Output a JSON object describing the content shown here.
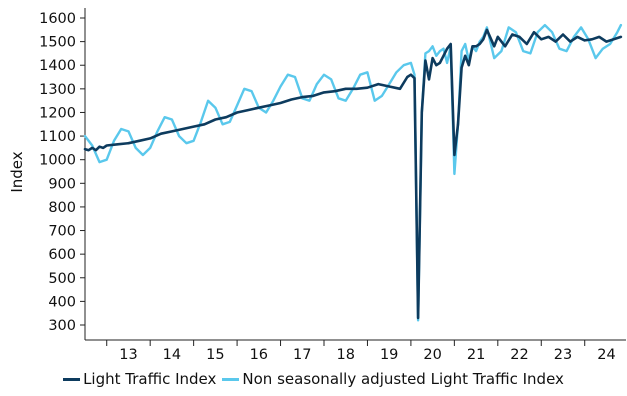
{
  "chart_data": {
    "type": "line",
    "title": "",
    "xlabel": "",
    "ylabel": "Index",
    "ylim": [
      300,
      1600
    ],
    "yticks": [
      300,
      400,
      500,
      600,
      700,
      800,
      900,
      1000,
      1100,
      1200,
      1300,
      1400,
      1500,
      1600
    ],
    "xlim": [
      2012.5,
      2024.95
    ],
    "x_tick_labels": [
      "13",
      "14",
      "15",
      "16",
      "17",
      "18",
      "19",
      "20",
      "21",
      "22",
      "23",
      "24"
    ],
    "grid": false,
    "legend_position": "bottom",
    "series": [
      {
        "name": "Light Traffic Index",
        "color": "#0d3b5e",
        "x": [
          "2012-07",
          "2012-08",
          "2012-09",
          "2012-10",
          "2012-11",
          "2012-12",
          "2013-01",
          "2013-04",
          "2013-07",
          "2013-10",
          "2014-01",
          "2014-04",
          "2014-07",
          "2014-10",
          "2015-01",
          "2015-04",
          "2015-07",
          "2015-10",
          "2016-01",
          "2016-04",
          "2016-07",
          "2016-10",
          "2017-01",
          "2017-04",
          "2017-07",
          "2017-10",
          "2018-01",
          "2018-04",
          "2018-07",
          "2018-10",
          "2019-01",
          "2019-04",
          "2019-07",
          "2019-10",
          "2019-12",
          "2020-01",
          "2020-02",
          "2020-03",
          "2020-04",
          "2020-05",
          "2020-06",
          "2020-07",
          "2020-08",
          "2020-09",
          "2020-10",
          "2020-11",
          "2020-12",
          "2021-01",
          "2021-02",
          "2021-03",
          "2021-04",
          "2021-05",
          "2021-06",
          "2021-07",
          "2021-08",
          "2021-09",
          "2021-10",
          "2021-12",
          "2022-01",
          "2022-03",
          "2022-05",
          "2022-07",
          "2022-09",
          "2022-11",
          "2023-01",
          "2023-03",
          "2023-05",
          "2023-07",
          "2023-09",
          "2023-11",
          "2024-01",
          "2024-03",
          "2024-05",
          "2024-07",
          "2024-09",
          "2024-11"
        ],
        "values": [
          1045,
          1040,
          1050,
          1040,
          1055,
          1050,
          1060,
          1065,
          1070,
          1080,
          1090,
          1110,
          1120,
          1130,
          1140,
          1150,
          1170,
          1180,
          1200,
          1210,
          1220,
          1230,
          1240,
          1255,
          1265,
          1270,
          1285,
          1290,
          1300,
          1300,
          1305,
          1320,
          1310,
          1300,
          1350,
          1360,
          1345,
          330,
          1200,
          1420,
          1340,
          1430,
          1400,
          1410,
          1440,
          1470,
          1490,
          1020,
          1150,
          1390,
          1440,
          1400,
          1480,
          1480,
          1490,
          1510,
          1550,
          1480,
          1520,
          1480,
          1530,
          1520,
          1490,
          1540,
          1510,
          1520,
          1500,
          1530,
          1500,
          1520,
          1505,
          1510,
          1520,
          1500,
          1510,
          1520
        ]
      },
      {
        "name": "Non seasonally adjusted Light Traffic Index",
        "color": "#5ac8ec",
        "x": [
          "2012-07",
          "2012-09",
          "2012-11",
          "2013-01",
          "2013-03",
          "2013-05",
          "2013-07",
          "2013-09",
          "2013-11",
          "2014-01",
          "2014-03",
          "2014-05",
          "2014-07",
          "2014-09",
          "2014-11",
          "2015-01",
          "2015-03",
          "2015-05",
          "2015-07",
          "2015-09",
          "2015-11",
          "2016-01",
          "2016-03",
          "2016-05",
          "2016-07",
          "2016-09",
          "2016-11",
          "2017-01",
          "2017-03",
          "2017-05",
          "2017-07",
          "2017-09",
          "2017-11",
          "2018-01",
          "2018-03",
          "2018-05",
          "2018-07",
          "2018-09",
          "2018-11",
          "2019-01",
          "2019-03",
          "2019-05",
          "2019-07",
          "2019-09",
          "2019-11",
          "2020-01",
          "2020-02",
          "2020-03",
          "2020-04",
          "2020-05",
          "2020-06",
          "2020-07",
          "2020-08",
          "2020-09",
          "2020-10",
          "2020-11",
          "2020-12",
          "2021-01",
          "2021-02",
          "2021-03",
          "2021-04",
          "2021-05",
          "2021-06",
          "2021-07",
          "2021-08",
          "2021-09",
          "2021-10",
          "2021-12",
          "2022-02",
          "2022-04",
          "2022-06",
          "2022-08",
          "2022-10",
          "2022-12",
          "2023-02",
          "2023-04",
          "2023-06",
          "2023-08",
          "2023-10",
          "2023-12",
          "2024-02",
          "2024-04",
          "2024-06",
          "2024-08",
          "2024-10",
          "2024-11"
        ],
        "values": [
          1100,
          1060,
          990,
          1000,
          1080,
          1130,
          1120,
          1050,
          1020,
          1050,
          1120,
          1180,
          1170,
          1100,
          1070,
          1080,
          1160,
          1250,
          1220,
          1150,
          1160,
          1230,
          1300,
          1290,
          1220,
          1200,
          1250,
          1310,
          1360,
          1350,
          1260,
          1250,
          1320,
          1360,
          1340,
          1260,
          1250,
          1300,
          1360,
          1370,
          1250,
          1270,
          1320,
          1370,
          1400,
          1410,
          1360,
          320,
          1200,
          1450,
          1460,
          1480,
          1440,
          1460,
          1470,
          1410,
          1480,
          940,
          1150,
          1460,
          1490,
          1420,
          1480,
          1460,
          1500,
          1520,
          1560,
          1430,
          1460,
          1560,
          1540,
          1460,
          1450,
          1540,
          1570,
          1540,
          1470,
          1460,
          1520,
          1560,
          1510,
          1430,
          1470,
          1490,
          1540,
          1570
        ]
      }
    ]
  },
  "legend": {
    "items": [
      {
        "label": "Light Traffic Index",
        "color": "#0d3b5e"
      },
      {
        "label": "Non seasonally adjusted Light Traffic Index",
        "color": "#5ac8ec"
      }
    ]
  }
}
